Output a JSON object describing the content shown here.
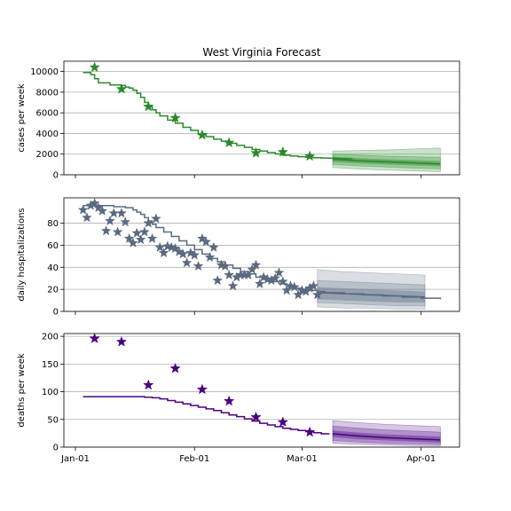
{
  "chart_data": {
    "title": "West Virginia Forecast",
    "type": "line",
    "x_tick_labels": [
      "Jan-01",
      "Feb-01",
      "Mar-01",
      "Apr-01"
    ],
    "x_tick_days": [
      0,
      31,
      59,
      90
    ],
    "panels": [
      {
        "ylabel": "cases per week",
        "ylim": [
          0,
          11000
        ],
        "yticks": [
          0,
          2000,
          4000,
          6000,
          8000,
          10000
        ],
        "line_color": "#2a8a2a",
        "band_color": "#2a8a2a",
        "marker": "star",
        "model": {
          "x": [
            2,
            4,
            5,
            6,
            9,
            12,
            13,
            14,
            15,
            16,
            17,
            18,
            19,
            20,
            21,
            22,
            24,
            26,
            28,
            30,
            32,
            34,
            36,
            38,
            40,
            42,
            44,
            46,
            48,
            50,
            52,
            54,
            56,
            58,
            60,
            62,
            64,
            66,
            68,
            70,
            72
          ],
          "y": [
            9900,
            9700,
            9300,
            8900,
            8700,
            8650,
            8500,
            8400,
            8200,
            7900,
            7500,
            7000,
            6600,
            6300,
            6000,
            5700,
            5300,
            5000,
            4600,
            4300,
            3900,
            3700,
            3450,
            3250,
            3050,
            2850,
            2650,
            2450,
            2300,
            2150,
            2020,
            1900,
            1820,
            1750,
            1700,
            1650,
            1620,
            1600,
            1580,
            1560,
            1540
          ]
        },
        "observed": {
          "x": [
            5,
            12,
            19,
            26,
            33,
            40,
            47,
            54,
            61
          ],
          "y": [
            10400,
            8300,
            6600,
            5500,
            3850,
            3100,
            2100,
            2200,
            1800
          ]
        },
        "forecast": {
          "x": [
            67,
            74,
            81,
            88,
            95
          ],
          "median": [
            1500,
            1350,
            1250,
            1150,
            1050
          ],
          "inner": [
            [
              1250,
              1750
            ],
            [
              1100,
              1600
            ],
            [
              1000,
              1500
            ],
            [
              900,
              1420
            ],
            [
              820,
              1320
            ]
          ],
          "middle": [
            [
              1000,
              2000
            ],
            [
              850,
              1900
            ],
            [
              750,
              1800
            ],
            [
              650,
              1750
            ],
            [
              580,
              1700
            ]
          ],
          "outer": [
            [
              700,
              2300
            ],
            [
              550,
              2350
            ],
            [
              450,
              2400
            ],
            [
              380,
              2500
            ],
            [
              300,
              2600
            ]
          ]
        }
      },
      {
        "ylabel": "daily hospitalizations",
        "ylim": [
          0,
          103
        ],
        "yticks": [
          0,
          20,
          40,
          60,
          80
        ],
        "line_color": "#5a6a80",
        "band_color": "#6a7a90",
        "marker": "star",
        "model": {
          "x": [
            2,
            6,
            10,
            13,
            15,
            16,
            17,
            18,
            19,
            20,
            21,
            23,
            25,
            27,
            29,
            31,
            33,
            35,
            37,
            39,
            41,
            43,
            45,
            47,
            49,
            51,
            53,
            55,
            57,
            59,
            61,
            63,
            65,
            70,
            75,
            80,
            85,
            90,
            95
          ],
          "y": [
            96,
            96,
            95,
            94,
            92,
            90,
            88,
            85,
            82,
            79,
            76,
            72,
            68,
            64,
            60,
            56,
            52,
            48,
            45,
            42,
            39,
            36,
            34,
            31,
            29,
            27,
            25,
            23,
            21,
            20,
            19,
            18,
            17,
            16,
            15,
            14,
            13,
            12,
            11
          ]
        },
        "observed": {
          "x": [
            2,
            3,
            4,
            5,
            6,
            7,
            8,
            9,
            10,
            11,
            12,
            13,
            14,
            15,
            16,
            17,
            18,
            19,
            20,
            21,
            22,
            23,
            24,
            25,
            26,
            27,
            28,
            29,
            30,
            31,
            32,
            33,
            34,
            35,
            36,
            37,
            38,
            39,
            40,
            41,
            42,
            43,
            44,
            45,
            46,
            47,
            48,
            49,
            50,
            51,
            52,
            53,
            54,
            55,
            56,
            57,
            58,
            59,
            60,
            61,
            62,
            63
          ],
          "y": [
            92,
            85,
            96,
            98,
            94,
            91,
            73,
            82,
            89,
            72,
            89,
            81,
            66,
            62,
            71,
            65,
            72,
            80,
            66,
            84,
            58,
            53,
            59,
            58,
            57,
            54,
            52,
            44,
            53,
            51,
            41,
            66,
            63,
            49,
            58,
            28,
            42,
            41,
            33,
            23,
            31,
            33,
            33,
            33,
            38,
            42,
            25,
            31,
            29,
            28,
            30,
            35,
            27,
            19,
            23,
            22,
            15,
            19,
            18,
            21,
            23,
            15
          ]
        },
        "forecast": {
          "x": [
            63,
            70,
            77,
            84,
            91
          ],
          "median": [
            17,
            16,
            15,
            14,
            13
          ],
          "inner": [
            [
              11,
              22
            ],
            [
              10,
              21
            ],
            [
              9,
              20
            ],
            [
              8,
              19
            ],
            [
              8,
              18
            ]
          ],
          "middle": [
            [
              8,
              28
            ],
            [
              7,
              27
            ],
            [
              6,
              26
            ],
            [
              5,
              25
            ],
            [
              5,
              24
            ]
          ],
          "outer": [
            [
              4,
              38
            ],
            [
              3,
              36
            ],
            [
              3,
              35
            ],
            [
              2,
              34
            ],
            [
              2,
              33
            ]
          ]
        }
      },
      {
        "ylabel": "deaths per week",
        "ylim": [
          0,
          205
        ],
        "yticks": [
          0,
          50,
          100,
          150,
          200
        ],
        "line_color": "#4b0082",
        "band_color": "#5b1a8f",
        "marker": "star",
        "model": {
          "x": [
            2,
            6,
            10,
            14,
            18,
            20,
            22,
            24,
            26,
            28,
            30,
            32,
            34,
            36,
            38,
            40,
            42,
            44,
            46,
            48,
            50,
            52,
            54,
            56,
            58,
            60,
            62,
            64,
            66
          ],
          "y": [
            91,
            91,
            91,
            91,
            90,
            89,
            87,
            84,
            81,
            78,
            75,
            72,
            69,
            66,
            62,
            58,
            55,
            51,
            47,
            43,
            40,
            37,
            34,
            32,
            30,
            28,
            26,
            24,
            23
          ]
        },
        "observed": {
          "x": [
            5,
            12,
            19,
            26,
            33,
            40,
            47,
            54,
            61
          ],
          "y": [
            196,
            190,
            112,
            142,
            104,
            83,
            54,
            45,
            27
          ]
        },
        "forecast": {
          "x": [
            67,
            74,
            81,
            88,
            95
          ],
          "median": [
            24,
            20,
            17,
            15,
            13
          ],
          "inner": [
            [
              18,
              30
            ],
            [
              14,
              26
            ],
            [
              12,
              23
            ],
            [
              10,
              21
            ],
            [
              8,
              19
            ]
          ],
          "middle": [
            [
              12,
              38
            ],
            [
              9,
              34
            ],
            [
              7,
              31
            ],
            [
              6,
              29
            ],
            [
              5,
              27
            ]
          ],
          "outer": [
            [
              7,
              48
            ],
            [
              5,
              44
            ],
            [
              4,
              41
            ],
            [
              3,
              39
            ],
            [
              2,
              37
            ]
          ]
        }
      }
    ]
  }
}
